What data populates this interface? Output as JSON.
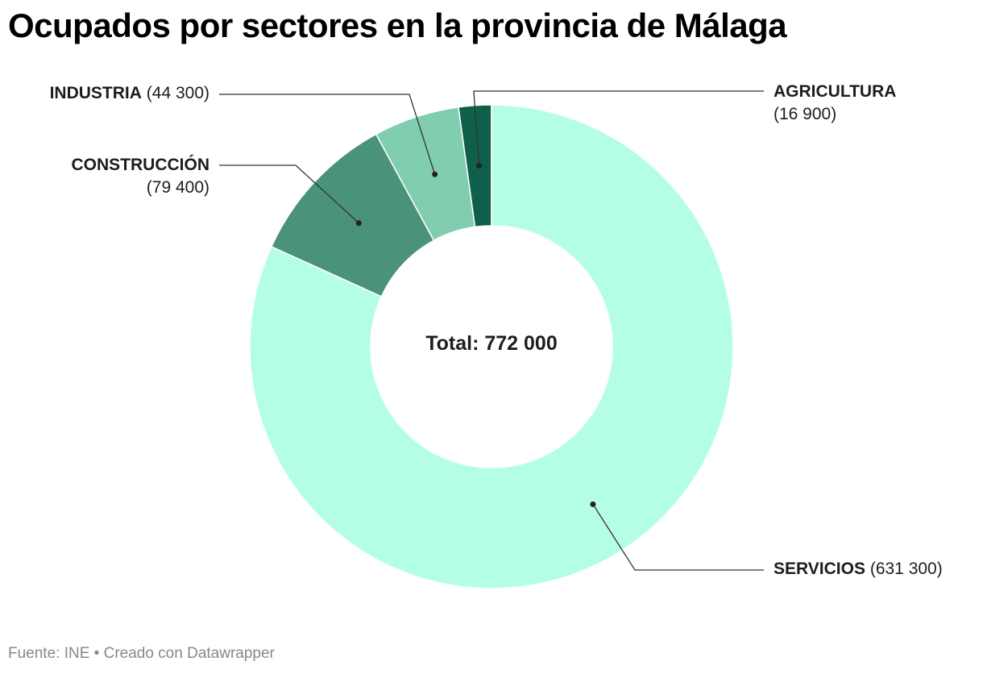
{
  "title": "Ocupados por sectores en la provincia de Málaga",
  "center_label": "Total: 772 000",
  "footer": "Fuente: INE • Creado con Datawrapper",
  "chart_data": {
    "type": "pie",
    "donut": true,
    "total": 772000,
    "categories": [
      "AGRICULTURA",
      "INDUSTRIA",
      "CONSTRUCCIÓN",
      "SERVICIOS"
    ],
    "values": [
      16900,
      44300,
      79400,
      631300
    ],
    "value_labels": [
      "(16 900)",
      "(44 300)",
      "(79 400)",
      "(631 300)"
    ],
    "colors": [
      "#0f604a",
      "#80cdb0",
      "#4a937a",
      "#b4ffe3"
    ]
  }
}
